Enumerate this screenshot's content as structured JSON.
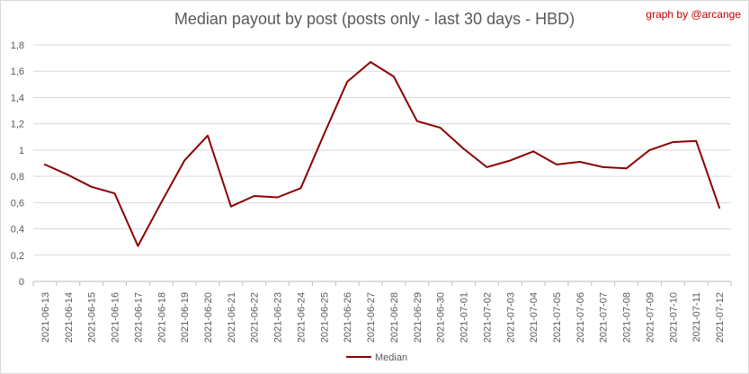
{
  "credit": "graph by @arcange",
  "chart_data": {
    "type": "line",
    "title": "Median payout by post (posts only - last 30 days - HBD)",
    "xlabel": "",
    "ylabel": "",
    "ylim": [
      0,
      1.8
    ],
    "yticks": [
      "0",
      "0,2",
      "0,4",
      "0,6",
      "0,8",
      "1",
      "1,2",
      "1,4",
      "1,6",
      "1,8"
    ],
    "grid": "horizontal",
    "legend_position": "bottom",
    "categories": [
      "2021-06-13",
      "2021-06-14",
      "2021-06-15",
      "2021-06-16",
      "2021-06-17",
      "2021-06-18",
      "2021-06-19",
      "2021-06-20",
      "2021-06-21",
      "2021-06-22",
      "2021-06-23",
      "2021-06-24",
      "2021-06-25",
      "2021-06-26",
      "2021-06-27",
      "2021-06-28",
      "2021-06-29",
      "2021-06-30",
      "2021-07-01",
      "2021-07-02",
      "2021-07-03",
      "2021-07-04",
      "2021-07-05",
      "2021-07-06",
      "2021-07-07",
      "2021-07-08",
      "2021-07-09",
      "2021-07-10",
      "2021-07-11",
      "2021-07-12"
    ],
    "series": [
      {
        "name": "Median",
        "color": "#8b0000",
        "values": [
          0.89,
          0.81,
          0.72,
          0.67,
          0.27,
          0.6,
          0.92,
          1.11,
          0.57,
          0.65,
          0.64,
          0.71,
          1.12,
          1.52,
          1.67,
          1.56,
          1.22,
          1.17,
          1.01,
          0.87,
          0.92,
          0.99,
          0.89,
          0.91,
          0.87,
          0.86,
          1.0,
          1.06,
          1.07,
          0.56
        ]
      }
    ]
  }
}
